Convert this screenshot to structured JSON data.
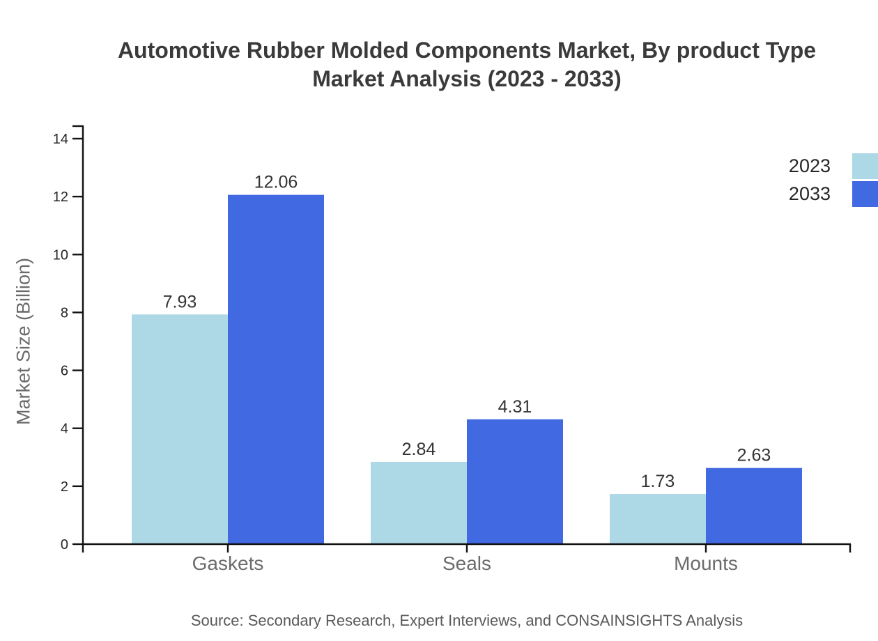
{
  "title": "Automotive Rubber Molded Components Market, By product Type\nMarket Analysis (2023 - 2033)",
  "source": "Source: Secondary Research, Expert Interviews, and CONSAINSIGHTS Analysis",
  "chart_data": {
    "type": "bar",
    "title": "Automotive Rubber Molded Components Market, By product Type Market Analysis (2023 - 2033)",
    "categories": [
      "Gaskets",
      "Seals",
      "Mounts"
    ],
    "series": [
      {
        "name": "2023",
        "color": "#ADD8E6",
        "values": [
          7.93,
          2.84,
          1.73
        ]
      },
      {
        "name": "2033",
        "color": "#4169E1",
        "values": [
          12.06,
          4.31,
          2.63
        ]
      }
    ],
    "xlabel": "",
    "ylabel": "Market Size (Billion)",
    "ylim": [
      0,
      14
    ],
    "yticks": [
      0,
      2,
      4,
      6,
      8,
      10,
      12,
      14
    ],
    "grid": false,
    "legend_position": "top-right",
    "value_labels": true,
    "value_label_texts": [
      [
        "7.93",
        "2.84",
        "1.73"
      ],
      [
        "12.06",
        "4.31",
        "2.63"
      ]
    ]
  },
  "style_colors": {
    "axis": "#111111",
    "tick_label": "#262626",
    "category_label": "#6b6b6b",
    "value_label": "#333333",
    "title": "#3a3a3a",
    "source": "#595959"
  }
}
